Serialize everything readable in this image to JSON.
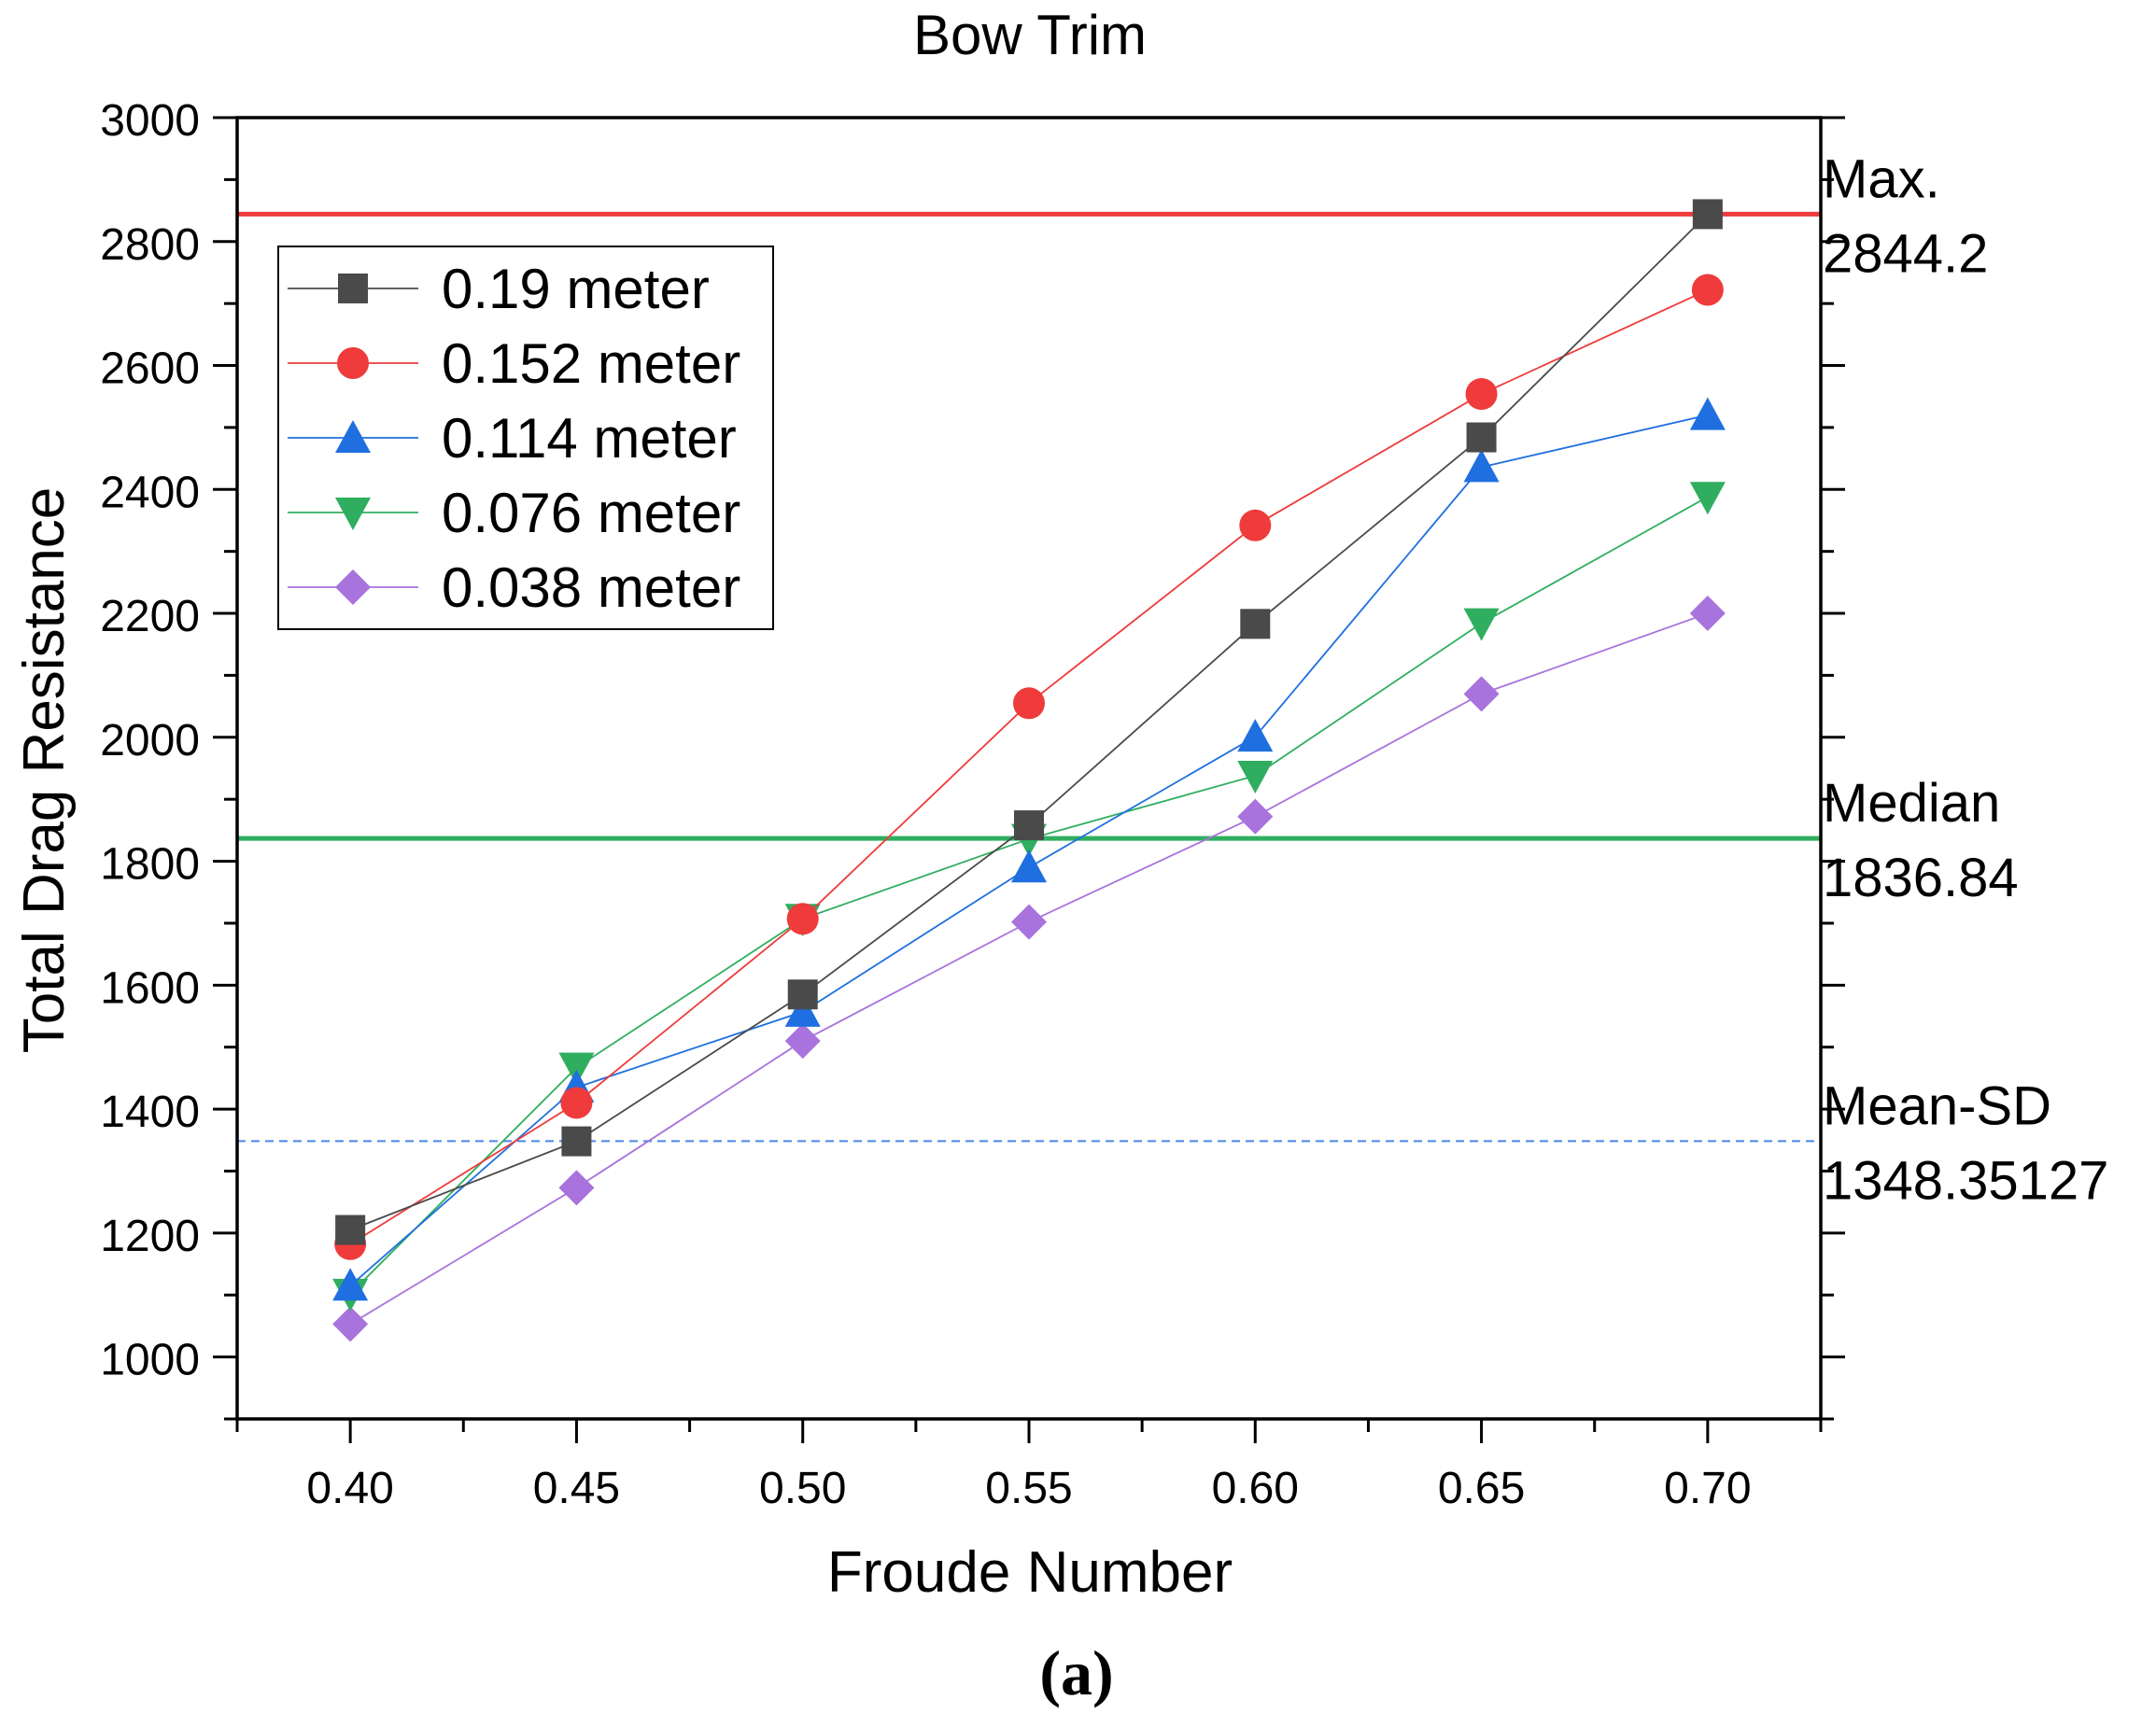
{
  "chart_data": {
    "type": "line",
    "title": "Bow Trim",
    "xlabel": "Froude Number",
    "ylabel": "Total Drag Resistance",
    "panel_label": "(a)",
    "x": [
      0.4,
      0.45,
      0.5,
      0.55,
      0.6,
      0.65,
      0.7
    ],
    "x_tick_labels": [
      "0.40",
      "0.45",
      "0.50",
      "0.55",
      "0.60",
      "0.65",
      "0.70"
    ],
    "xlim": [
      0.375,
      0.725
    ],
    "ylim": [
      900,
      3000
    ],
    "y_ticks": [
      1000,
      1200,
      1400,
      1600,
      1800,
      2000,
      2200,
      2400,
      2600,
      2800,
      3000
    ],
    "y_tick_labels": [
      "1000",
      "1200",
      "1400",
      "1600",
      "1800",
      "2000",
      "2200",
      "2400",
      "2600",
      "2800",
      "3000"
    ],
    "legend_position": "top-left",
    "series": [
      {
        "name": "0.19 meter",
        "color": "#4a4a4a",
        "marker": "square",
        "values": [
          1205,
          1348,
          1585,
          1858,
          2183,
          2484,
          2844.2
        ]
      },
      {
        "name": "0.152 meter",
        "color": "#ef3b3b",
        "marker": "circle",
        "values": [
          1182,
          1410,
          1707,
          2055,
          2342,
          2554,
          2722
        ]
      },
      {
        "name": "0.114 meter",
        "color": "#1f6fe0",
        "marker": "triangle-up",
        "values": [
          1115,
          1435,
          1557,
          1790,
          2001,
          2436,
          2520
        ]
      },
      {
        "name": "0.076 meter",
        "color": "#2fae5f",
        "marker": "triangle-down",
        "values": [
          1102,
          1467,
          1707,
          1836,
          1938,
          2184,
          2388
        ]
      },
      {
        "name": "0.038 meter",
        "color": "#a873dc",
        "marker": "diamond",
        "values": [
          1053,
          1273,
          1510,
          1702,
          1872,
          2070,
          2200
        ]
      }
    ],
    "reference_lines": [
      {
        "label": "Max.",
        "value_text": "2844.2",
        "value": 2844.2,
        "color": "#ef3b3b",
        "style": "solid"
      },
      {
        "label": "Median",
        "value_text": "1836.84",
        "value": 1836.84,
        "color": "#2fae5f",
        "style": "solid"
      },
      {
        "label": "Mean-SD",
        "value_text": "1348.35127",
        "value": 1348.35127,
        "color": "#4a86e8",
        "style": "dashed"
      }
    ]
  }
}
